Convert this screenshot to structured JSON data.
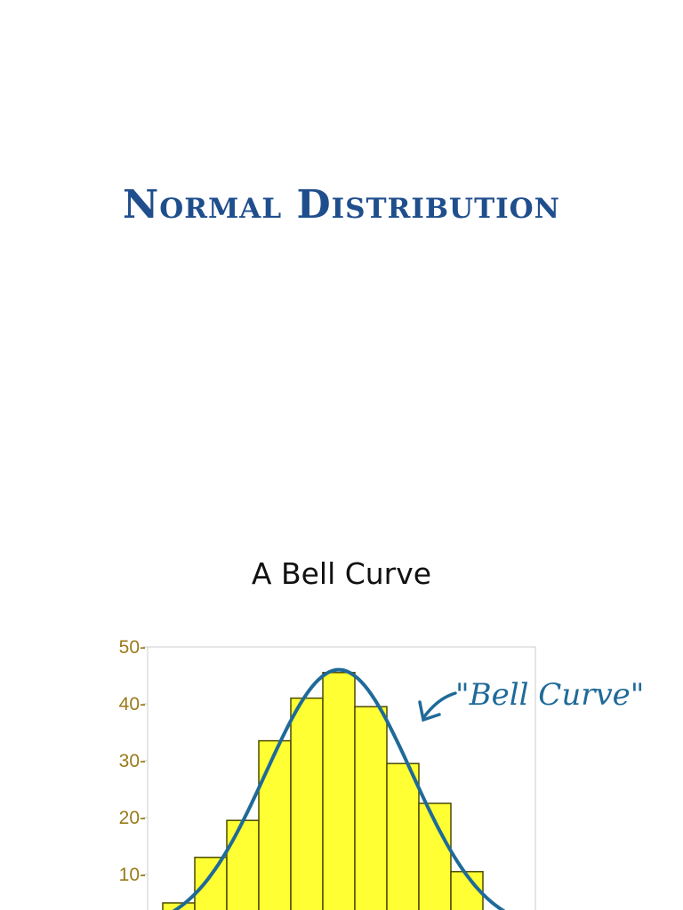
{
  "slide": {
    "title": "Normal Distribution",
    "subtitle": "A Bell Curve"
  },
  "chart_data": {
    "type": "bar",
    "ylim": [
      0,
      50
    ],
    "yticks": [
      10,
      20,
      30,
      40,
      50
    ],
    "tick_labels": [
      "10-",
      "20-",
      "30-",
      "40-",
      "50-"
    ],
    "values": [
      5,
      13,
      19.5,
      33.5,
      41,
      45.5,
      39.5,
      29.5,
      22.5,
      10.5
    ],
    "curve_peak": 46,
    "annotation": "\"Bell Curve\"",
    "grid": false,
    "colors": {
      "bar_fill": "#ffff33",
      "bar_stroke": "#4a4a00",
      "curve": "#1f6a99",
      "tick_label": "#9a7a1a",
      "axis": "#cccccc",
      "title": "#1f4e8c"
    }
  }
}
